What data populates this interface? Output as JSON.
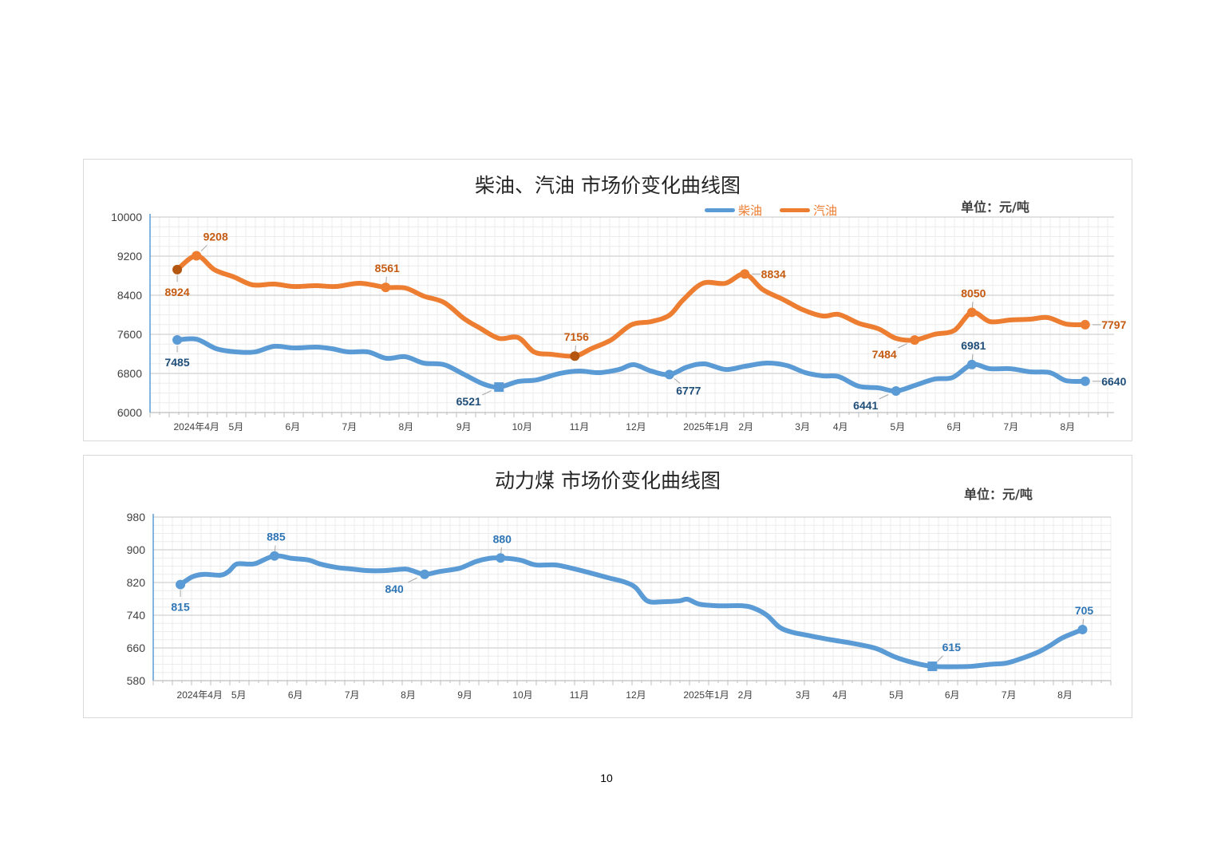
{
  "colors": {
    "diesel": "#5b9bd5",
    "gasoline": "#ed7d31",
    "gasoline_dark_marker": "#b4560f",
    "diesel_label": "#1f4e79",
    "gasoline_label": "#c55a11",
    "coal": "#5b9bd5",
    "coal_label": "#2e75b6"
  },
  "page_number": "10",
  "chart_data": [
    {
      "type": "line",
      "title": "柴油、汽油 市场价变化曲线图",
      "unit": "单位：元/吨",
      "ylim": [
        6000,
        10000
      ],
      "yticks": [
        "6000",
        "6800",
        "7600",
        "8400",
        "9200",
        "10000"
      ],
      "ytick_values": [
        6000,
        6800,
        7600,
        8400,
        9200,
        10000
      ],
      "xlim": [
        -0.82,
        16.2
      ],
      "xticks": [
        {
          "x": 0,
          "label": "2024年4月"
        },
        {
          "x": 0.7,
          "label": "5月"
        },
        {
          "x": 1.7,
          "label": "6月"
        },
        {
          "x": 2.7,
          "label": "7月"
        },
        {
          "x": 3.7,
          "label": "8月"
        },
        {
          "x": 4.72,
          "label": "9月"
        },
        {
          "x": 5.75,
          "label": "10月"
        },
        {
          "x": 6.76,
          "label": "11月"
        },
        {
          "x": 7.76,
          "label": "12月"
        },
        {
          "x": 9.0,
          "label": "2025年1月"
        },
        {
          "x": 9.7,
          "label": "2月"
        },
        {
          "x": 10.7,
          "label": "3月"
        },
        {
          "x": 11.37,
          "label": "4月"
        },
        {
          "x": 12.38,
          "label": "5月"
        },
        {
          "x": 13.38,
          "label": "6月"
        },
        {
          "x": 14.38,
          "label": "7月"
        },
        {
          "x": 15.38,
          "label": "8月"
        }
      ],
      "legend": {
        "placement": "top-right",
        "entries": [
          "柴油",
          "汽油"
        ]
      },
      "grid": true,
      "series": [
        {
          "name": "柴油",
          "color_key": "diesel",
          "label_color_key": "diesel_label",
          "x": [
            -0.34,
            0,
            0.35,
            0.7,
            1.03,
            1.37,
            1.72,
            2.11,
            2.39,
            2.68,
            3.03,
            3.35,
            3.69,
            4.01,
            4.37,
            4.72,
            5.06,
            5.34,
            5.68,
            6.01,
            6.41,
            6.76,
            7.11,
            7.46,
            7.72,
            8.03,
            8.35,
            8.66,
            8.97,
            9.34,
            9.68,
            10.07,
            10.42,
            10.75,
            11.06,
            11.34,
            11.69,
            12.04,
            12.35,
            12.68,
            13.03,
            13.35,
            13.69,
            14.01,
            14.37,
            14.72,
            15.07,
            15.35,
            15.69
          ],
          "values": [
            7485,
            7501,
            7306,
            7240,
            7240,
            7355,
            7322,
            7338,
            7306,
            7240,
            7240,
            7110,
            7142,
            7012,
            6979,
            6783,
            6587,
            6521,
            6636,
            6669,
            6799,
            6848,
            6816,
            6881,
            6979,
            6848,
            6777,
            6930,
            6995,
            6881,
            6946,
            7012,
            6963,
            6816,
            6750,
            6734,
            6538,
            6505,
            6441,
            6554,
            6685,
            6718,
            6981,
            6897,
            6897,
            6832,
            6816,
            6653,
            6640
          ],
          "labels": [
            {
              "index": 0,
              "text": "7485",
              "pos": "below",
              "marker": "circle"
            },
            {
              "index": 17,
              "text": "6521",
              "pos": "below-left",
              "marker": "square"
            },
            {
              "index": 26,
              "text": "6777",
              "pos": "below-right",
              "marker": "circle"
            },
            {
              "index": 38,
              "text": "6441",
              "pos": "below-left",
              "marker": "circle"
            },
            {
              "index": 42,
              "text": "6981",
              "pos": "above",
              "marker": "circle"
            },
            {
              "index": 48,
              "text": "6640",
              "pos": "right",
              "marker": "circle"
            }
          ]
        },
        {
          "name": "汽油",
          "color_key": "gasoline",
          "label_color_key": "gasoline_label",
          "x": [
            -0.34,
            0,
            0.32,
            0.66,
            0.99,
            1.37,
            1.72,
            2.11,
            2.46,
            2.89,
            3.34,
            3.69,
            4.01,
            4.37,
            4.72,
            5.0,
            5.34,
            5.68,
            5.96,
            6.27,
            6.68,
            6.97,
            7.32,
            7.68,
            8.03,
            8.35,
            8.59,
            8.94,
            9.34,
            9.68,
            10.0,
            10.35,
            10.7,
            11.06,
            11.34,
            11.69,
            12.04,
            12.35,
            12.68,
            13.03,
            13.38,
            13.69,
            14.01,
            14.37,
            14.72,
            15.03,
            15.35,
            15.69
          ],
          "values": [
            8924,
            9208,
            8920,
            8775,
            8612,
            8628,
            8579,
            8596,
            8579,
            8645,
            8561,
            8547,
            8383,
            8253,
            7926,
            7730,
            7518,
            7534,
            7240,
            7191,
            7156,
            7306,
            7485,
            7796,
            7861,
            7992,
            8302,
            8645,
            8645,
            8834,
            8514,
            8318,
            8106,
            7975,
            8008,
            7828,
            7714,
            7518,
            7484,
            7600,
            7681,
            8050,
            7861,
            7894,
            7910,
            7943,
            7812,
            7797
          ],
          "labels": [
            {
              "index": 0,
              "text": "8924",
              "pos": "below",
              "marker": "dark"
            },
            {
              "index": 1,
              "text": "9208",
              "pos": "above-right",
              "marker": "circle"
            },
            {
              "index": 10,
              "text": "8561",
              "pos": "above",
              "marker": "circle"
            },
            {
              "index": 20,
              "text": "7156",
              "pos": "above",
              "marker": "dark"
            },
            {
              "index": 29,
              "text": "8834",
              "pos": "right",
              "marker": "circle"
            },
            {
              "index": 38,
              "text": "7484",
              "pos": "below-left",
              "marker": "circle"
            },
            {
              "index": 41,
              "text": "8050",
              "pos": "above",
              "marker": "circle"
            },
            {
              "index": 47,
              "text": "7797",
              "pos": "right",
              "marker": "circle"
            }
          ]
        }
      ]
    },
    {
      "type": "line",
      "title": "动力煤 市场价变化曲线图",
      "unit": "单位：元/吨",
      "ylim": [
        580,
        980
      ],
      "yticks": [
        "580",
        "660",
        "740",
        "820",
        "900",
        "980"
      ],
      "ytick_values": [
        580,
        660,
        740,
        820,
        900,
        980
      ],
      "xlim": [
        -0.82,
        16.08
      ],
      "xticks": [
        {
          "x": 0,
          "label": "2024年4月"
        },
        {
          "x": 0.69,
          "label": "5月"
        },
        {
          "x": 1.69,
          "label": "6月"
        },
        {
          "x": 2.69,
          "label": "7月"
        },
        {
          "x": 3.68,
          "label": "8月"
        },
        {
          "x": 4.68,
          "label": "9月"
        },
        {
          "x": 5.7,
          "label": "10月"
        },
        {
          "x": 6.7,
          "label": "11月"
        },
        {
          "x": 7.7,
          "label": "12月"
        },
        {
          "x": 8.94,
          "label": "2025年1月"
        },
        {
          "x": 9.63,
          "label": "2月"
        },
        {
          "x": 10.65,
          "label": "3月"
        },
        {
          "x": 11.3,
          "label": "4月"
        },
        {
          "x": 12.3,
          "label": "5月"
        },
        {
          "x": 13.28,
          "label": "6月"
        },
        {
          "x": 14.28,
          "label": "7月"
        },
        {
          "x": 15.27,
          "label": "8月"
        }
      ],
      "grid": true,
      "series": [
        {
          "name": "动力煤",
          "color_key": "coal",
          "label_color_key": "coal_label",
          "x": [
            -0.34,
            -0.13,
            0.08,
            0.37,
            0.51,
            0.65,
            0.86,
            1.0,
            1.32,
            1.63,
            1.92,
            2.13,
            2.41,
            2.69,
            2.97,
            3.25,
            3.61,
            3.75,
            3.97,
            4.24,
            4.59,
            4.87,
            5.11,
            5.31,
            5.65,
            5.93,
            6.28,
            6.56,
            6.85,
            7.2,
            7.48,
            7.69,
            7.9,
            8.18,
            8.46,
            8.61,
            8.82,
            9.17,
            9.59,
            9.8,
            10.01,
            10.23,
            10.44,
            10.72,
            11.14,
            11.49,
            11.85,
            11.99,
            12.27,
            12.62,
            12.93,
            13.25,
            13.61,
            13.96,
            14.24,
            14.52,
            14.8,
            15.01,
            15.23,
            15.58
          ],
          "values": [
            815,
            834,
            840,
            838,
            847,
            865,
            865,
            867,
            885,
            879,
            875,
            865,
            857,
            853,
            849,
            849,
            853,
            849,
            840,
            847,
            855,
            871,
            879,
            880,
            875,
            863,
            863,
            855,
            845,
            832,
            822,
            808,
            775,
            773,
            775,
            779,
            767,
            763,
            763,
            756,
            740,
            711,
            699,
            691,
            680,
            672,
            662,
            656,
            638,
            623,
            615,
            614,
            615,
            620,
            623,
            635,
            650,
            666,
            685,
            705
          ],
          "labels": [
            {
              "index": 0,
              "text": "815",
              "pos": "below",
              "marker": "circle"
            },
            {
              "index": 8,
              "text": "885",
              "pos": "above",
              "marker": "circle"
            },
            {
              "index": 18,
              "text": "840",
              "pos": "below-left",
              "marker": "circle"
            },
            {
              "index": 23,
              "text": "880",
              "pos": "above",
              "marker": "circle"
            },
            {
              "index": 50,
              "text": "615",
              "pos": "above-right",
              "marker": "square"
            },
            {
              "index": 59,
              "text": "705",
              "pos": "above",
              "marker": "circle"
            }
          ]
        }
      ]
    }
  ]
}
